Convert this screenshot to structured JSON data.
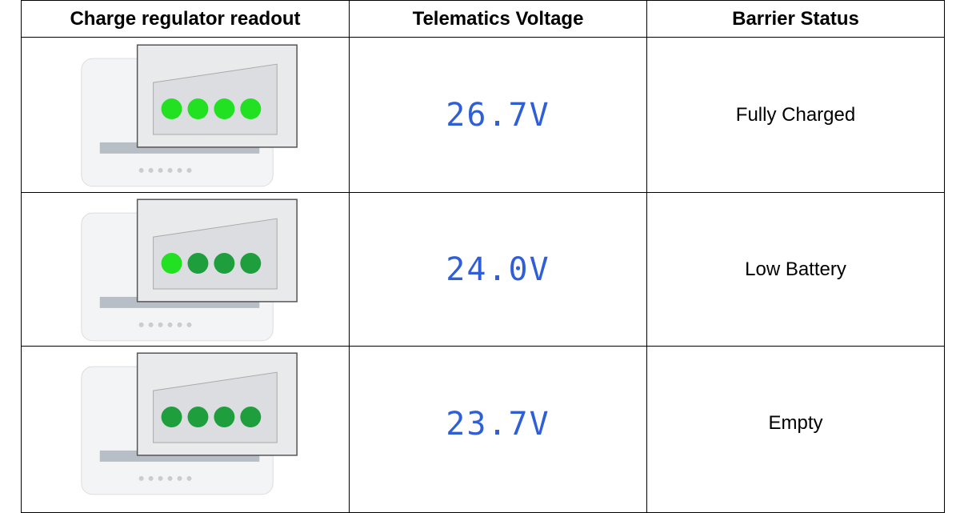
{
  "table": {
    "header": [
      "Charge regulator readout",
      "Telematics Voltage",
      "Barrier Status"
    ],
    "rows": [
      {
        "voltage": "26.7V",
        "status": "Fully Charged"
      },
      {
        "voltage": "24.0V",
        "status": "Low Battery"
      },
      {
        "voltage": "23.7V",
        "status": "Empty"
      }
    ]
  }
}
